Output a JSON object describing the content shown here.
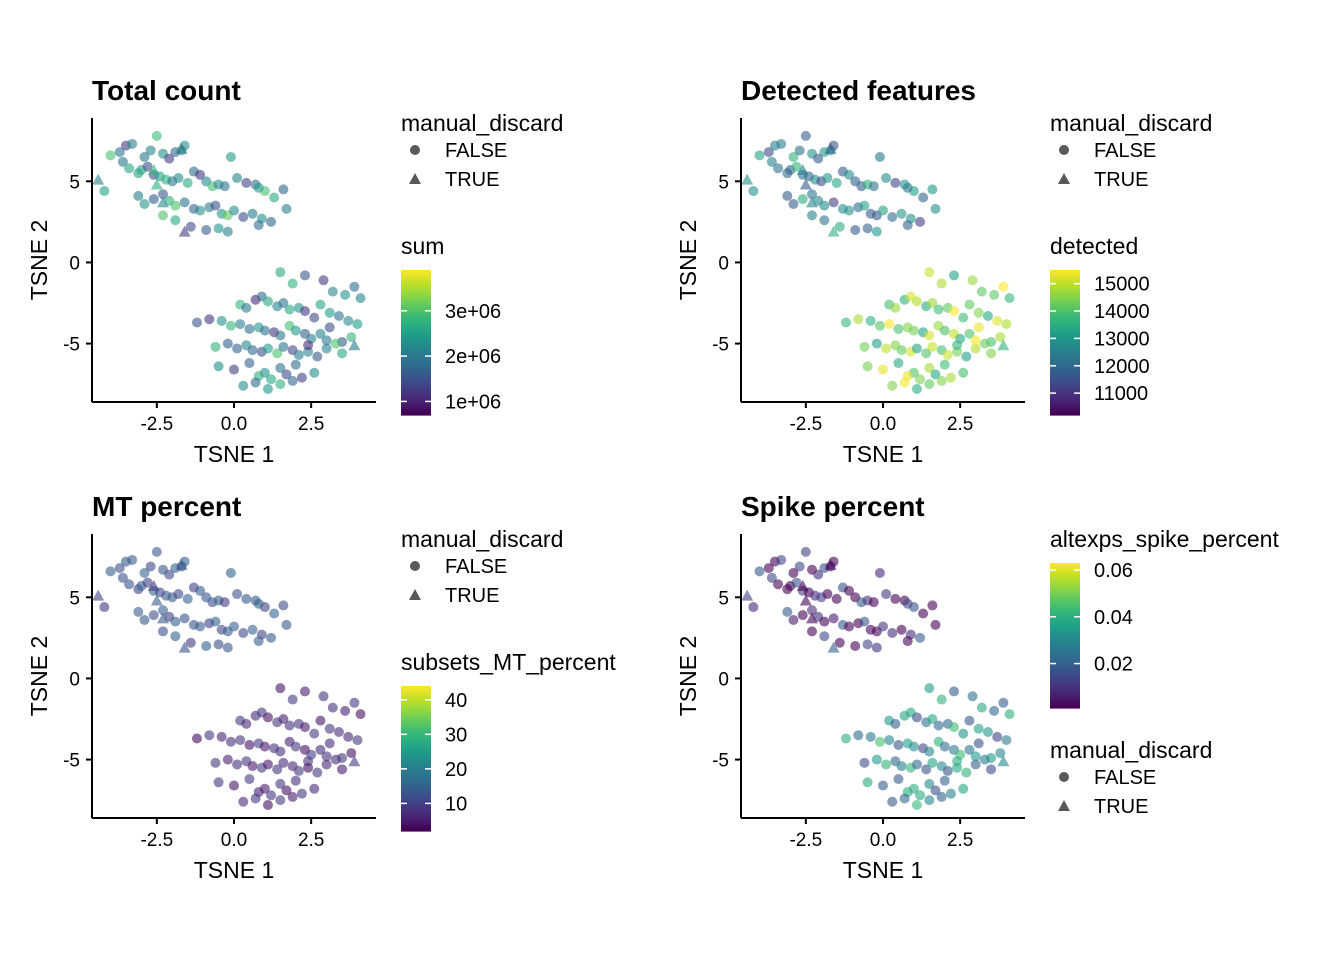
{
  "chart_data": [
    {
      "type": "scatter",
      "title": "Total count",
      "xlabel": "TSNE 1",
      "ylabel": "TSNE 2",
      "xlim": [
        -4.6,
        4.6
      ],
      "ylim": [
        -8.6,
        8.9
      ],
      "xticks": [
        -2.5,
        0.0,
        2.5
      ],
      "xtick_labels": [
        "-2.5",
        "0.0",
        "2.5"
      ],
      "yticks": [
        -5,
        0,
        5
      ],
      "ytick_labels": [
        "-5",
        "0",
        "5"
      ],
      "color_variable": "sum",
      "color_range": [
        700000,
        3900000
      ],
      "colorbar_ticks": [
        1000000,
        2000000,
        3000000
      ],
      "colorbar_tick_labels": [
        "1e+06",
        "2e+06",
        "3e+06"
      ],
      "shape_legend": {
        "title": "manual_discard",
        "labels": [
          "FALSE",
          "TRUE"
        ]
      },
      "legend_order": "shape-first",
      "grid": false
    },
    {
      "type": "scatter",
      "title": "Detected features",
      "xlabel": "TSNE 1",
      "ylabel": "TSNE 2",
      "xlim": [
        -4.6,
        4.6
      ],
      "ylim": [
        -8.6,
        8.9
      ],
      "xticks": [
        -2.5,
        0.0,
        2.5
      ],
      "xtick_labels": [
        "-2.5",
        "0.0",
        "2.5"
      ],
      "yticks": [
        -5,
        0,
        5
      ],
      "ytick_labels": [
        "-5",
        "0",
        "5"
      ],
      "color_variable": "detected",
      "color_range": [
        10200,
        15500
      ],
      "colorbar_ticks": [
        11000,
        12000,
        13000,
        14000,
        15000
      ],
      "colorbar_tick_labels": [
        "11000",
        "12000",
        "13000",
        "14000",
        "15000"
      ],
      "shape_legend": {
        "title": "manual_discard",
        "labels": [
          "FALSE",
          "TRUE"
        ]
      },
      "legend_order": "shape-first",
      "grid": false
    },
    {
      "type": "scatter",
      "title": "MT percent",
      "xlabel": "TSNE 1",
      "ylabel": "TSNE 2",
      "xlim": [
        -4.6,
        4.6
      ],
      "ylim": [
        -8.6,
        8.9
      ],
      "xticks": [
        -2.5,
        0.0,
        2.5
      ],
      "xtick_labels": [
        "-2.5",
        "0.0",
        "2.5"
      ],
      "yticks": [
        -5,
        0,
        5
      ],
      "ytick_labels": [
        "-5",
        "0",
        "5"
      ],
      "color_variable": "subsets_MT_percent",
      "color_range": [
        2,
        44
      ],
      "colorbar_ticks": [
        10,
        20,
        30,
        40
      ],
      "colorbar_tick_labels": [
        "10",
        "20",
        "30",
        "40"
      ],
      "shape_legend": {
        "title": "manual_discard",
        "labels": [
          "FALSE",
          "TRUE"
        ]
      },
      "legend_order": "shape-first",
      "grid": false
    },
    {
      "type": "scatter",
      "title": "Spike percent",
      "xlabel": "TSNE 1",
      "ylabel": "TSNE 2",
      "xlim": [
        -4.6,
        4.6
      ],
      "ylim": [
        -8.6,
        8.9
      ],
      "xticks": [
        -2.5,
        0.0,
        2.5
      ],
      "xtick_labels": [
        "-2.5",
        "0.0",
        "2.5"
      ],
      "yticks": [
        -5,
        0,
        5
      ],
      "ytick_labels": [
        "-5",
        "0",
        "5"
      ],
      "color_variable": "altexps_spike_percent",
      "color_range": [
        0.001,
        0.063
      ],
      "colorbar_ticks": [
        0.02,
        0.04,
        0.06
      ],
      "colorbar_tick_labels": [
        "0.02",
        "0.04",
        "0.06"
      ],
      "shape_legend": {
        "title": "manual_discard",
        "labels": [
          "FALSE",
          "TRUE"
        ]
      },
      "legend_order": "color-first",
      "grid": false
    }
  ],
  "points": {
    "x": [
      -4.2,
      -4.0,
      -3.7,
      -3.5,
      -3.3,
      -3.1,
      -2.9,
      -2.7,
      -2.5,
      -2.3,
      -2.1,
      -1.9,
      -1.7,
      -1.6,
      -3.6,
      -3.4,
      -3.0,
      -2.8,
      -2.6,
      -2.4,
      -2.2,
      -2.0,
      -1.8,
      -1.5,
      -1.3,
      -1.1,
      -0.9,
      -0.7,
      -0.5,
      -0.3,
      -0.1,
      0.1,
      0.4,
      0.7,
      1.0,
      1.3,
      1.6,
      -3.1,
      -2.9,
      -2.6,
      -2.3,
      -2.1,
      -1.9,
      -1.6,
      -1.3,
      -1.1,
      -0.8,
      -0.6,
      -0.4,
      -0.2,
      0.0,
      0.3,
      0.6,
      0.9,
      1.2,
      1.7,
      -2.3,
      -1.9,
      -1.4,
      -0.9,
      -0.5,
      -0.2,
      0.8,
      1.5,
      1.9,
      2.3,
      2.9,
      3.2,
      3.6,
      3.9,
      4.1,
      0.2,
      0.4,
      0.7,
      0.9,
      1.1,
      1.4,
      1.6,
      1.8,
      2.1,
      2.3,
      2.6,
      2.8,
      3.1,
      3.4,
      3.7,
      4.0,
      -1.2,
      -0.8,
      -0.4,
      -0.1,
      0.2,
      0.5,
      0.8,
      1.0,
      1.3,
      1.5,
      1.8,
      2.0,
      2.3,
      2.5,
      2.8,
      3.1,
      3.5,
      3.8,
      -0.6,
      -0.2,
      0.1,
      0.4,
      0.6,
      0.9,
      1.1,
      1.4,
      1.6,
      1.9,
      2.1,
      2.4,
      2.7,
      3.0,
      3.3,
      -0.5,
      0.0,
      0.5,
      1.0,
      1.5,
      2.0,
      0.8,
      1.2,
      1.7,
      2.2,
      2.6,
      0.3,
      0.7,
      1.1,
      1.5,
      1.9,
      2.4,
      3.0,
      3.5,
      3.9,
      -4.4,
      -2.5,
      -2.3,
      -1.6,
      -1.7,
      -2.6,
      0.8
    ],
    "y": [
      4.4,
      6.6,
      6.8,
      7.2,
      7.3,
      5.5,
      6.5,
      6.9,
      7.8,
      6.7,
      6.4,
      6.8,
      6.9,
      7.2,
      6.2,
      5.8,
      5.7,
      5.9,
      5.4,
      5.3,
      5.1,
      5.0,
      5.2,
      4.9,
      5.6,
      5.4,
      5.0,
      4.7,
      4.8,
      4.7,
      6.5,
      5.2,
      4.9,
      4.8,
      4.4,
      4.0,
      4.5,
      4.1,
      3.6,
      3.9,
      4.2,
      3.8,
      3.5,
      3.7,
      3.3,
      3.2,
      3.4,
      3.5,
      3.0,
      2.9,
      3.2,
      2.8,
      3.0,
      2.7,
      2.5,
      3.3,
      2.9,
      2.6,
      2.2,
      2.0,
      2.1,
      1.9,
      2.3,
      -0.6,
      -1.3,
      -0.8,
      -1.1,
      -1.8,
      -2.0,
      -1.5,
      -2.2,
      -2.6,
      -2.8,
      -2.3,
      -2.1,
      -2.4,
      -2.7,
      -2.5,
      -2.9,
      -2.8,
      -3.0,
      -3.4,
      -2.6,
      -3.1,
      -3.3,
      -3.6,
      -3.8,
      -3.7,
      -3.5,
      -3.6,
      -3.9,
      -3.8,
      -4.1,
      -4.0,
      -4.2,
      -4.3,
      -4.5,
      -3.9,
      -4.2,
      -4.4,
      -4.7,
      -4.4,
      -4.0,
      -4.9,
      -4.6,
      -5.2,
      -5.0,
      -5.3,
      -5.1,
      -5.4,
      -5.5,
      -5.3,
      -5.6,
      -5.2,
      -5.4,
      -5.7,
      -5.5,
      -5.8,
      -5.3,
      -5.0,
      -6.4,
      -6.6,
      -6.2,
      -6.8,
      -6.5,
      -6.3,
      -7.0,
      -7.2,
      -6.9,
      -7.1,
      -6.8,
      -7.6,
      -7.4,
      -7.8,
      -7.5,
      -7.3,
      -5.1,
      -4.8,
      -5.6,
      -5.1,
      5.1,
      4.8,
      3.7,
      1.9,
      7.0,
      5.7,
      4.6
    ],
    "discard": [
      0,
      0,
      0,
      0,
      0,
      0,
      0,
      0,
      0,
      0,
      0,
      0,
      0,
      0,
      0,
      0,
      0,
      0,
      0,
      0,
      0,
      0,
      0,
      0,
      0,
      0,
      0,
      0,
      0,
      0,
      0,
      0,
      0,
      0,
      0,
      0,
      0,
      0,
      0,
      0,
      0,
      0,
      0,
      0,
      0,
      0,
      0,
      0,
      0,
      0,
      0,
      0,
      0,
      0,
      0,
      0,
      0,
      0,
      0,
      0,
      0,
      0,
      0,
      0,
      0,
      0,
      0,
      0,
      0,
      0,
      0,
      0,
      0,
      0,
      0,
      0,
      0,
      0,
      0,
      0,
      0,
      0,
      0,
      0,
      0,
      0,
      0,
      0,
      0,
      0,
      0,
      0,
      0,
      0,
      0,
      0,
      0,
      0,
      0,
      0,
      0,
      0,
      0,
      0,
      0,
      0,
      0,
      0,
      0,
      0,
      0,
      0,
      0,
      0,
      0,
      0,
      0,
      0,
      0,
      0,
      0,
      0,
      0,
      0,
      0,
      0,
      0,
      0,
      0,
      0,
      0,
      0,
      0,
      0,
      0,
      0,
      0,
      0,
      0,
      1,
      1,
      1,
      1,
      1,
      1,
      1
    ]
  },
  "colors": {
    "viridis": [
      "#440154",
      "#482878",
      "#3e4a89",
      "#31688e",
      "#26828e",
      "#1f9e89",
      "#35b779",
      "#6ece58",
      "#b5de2b",
      "#fde725"
    ],
    "axis": "#000000",
    "legend_key_point": "#595959"
  }
}
